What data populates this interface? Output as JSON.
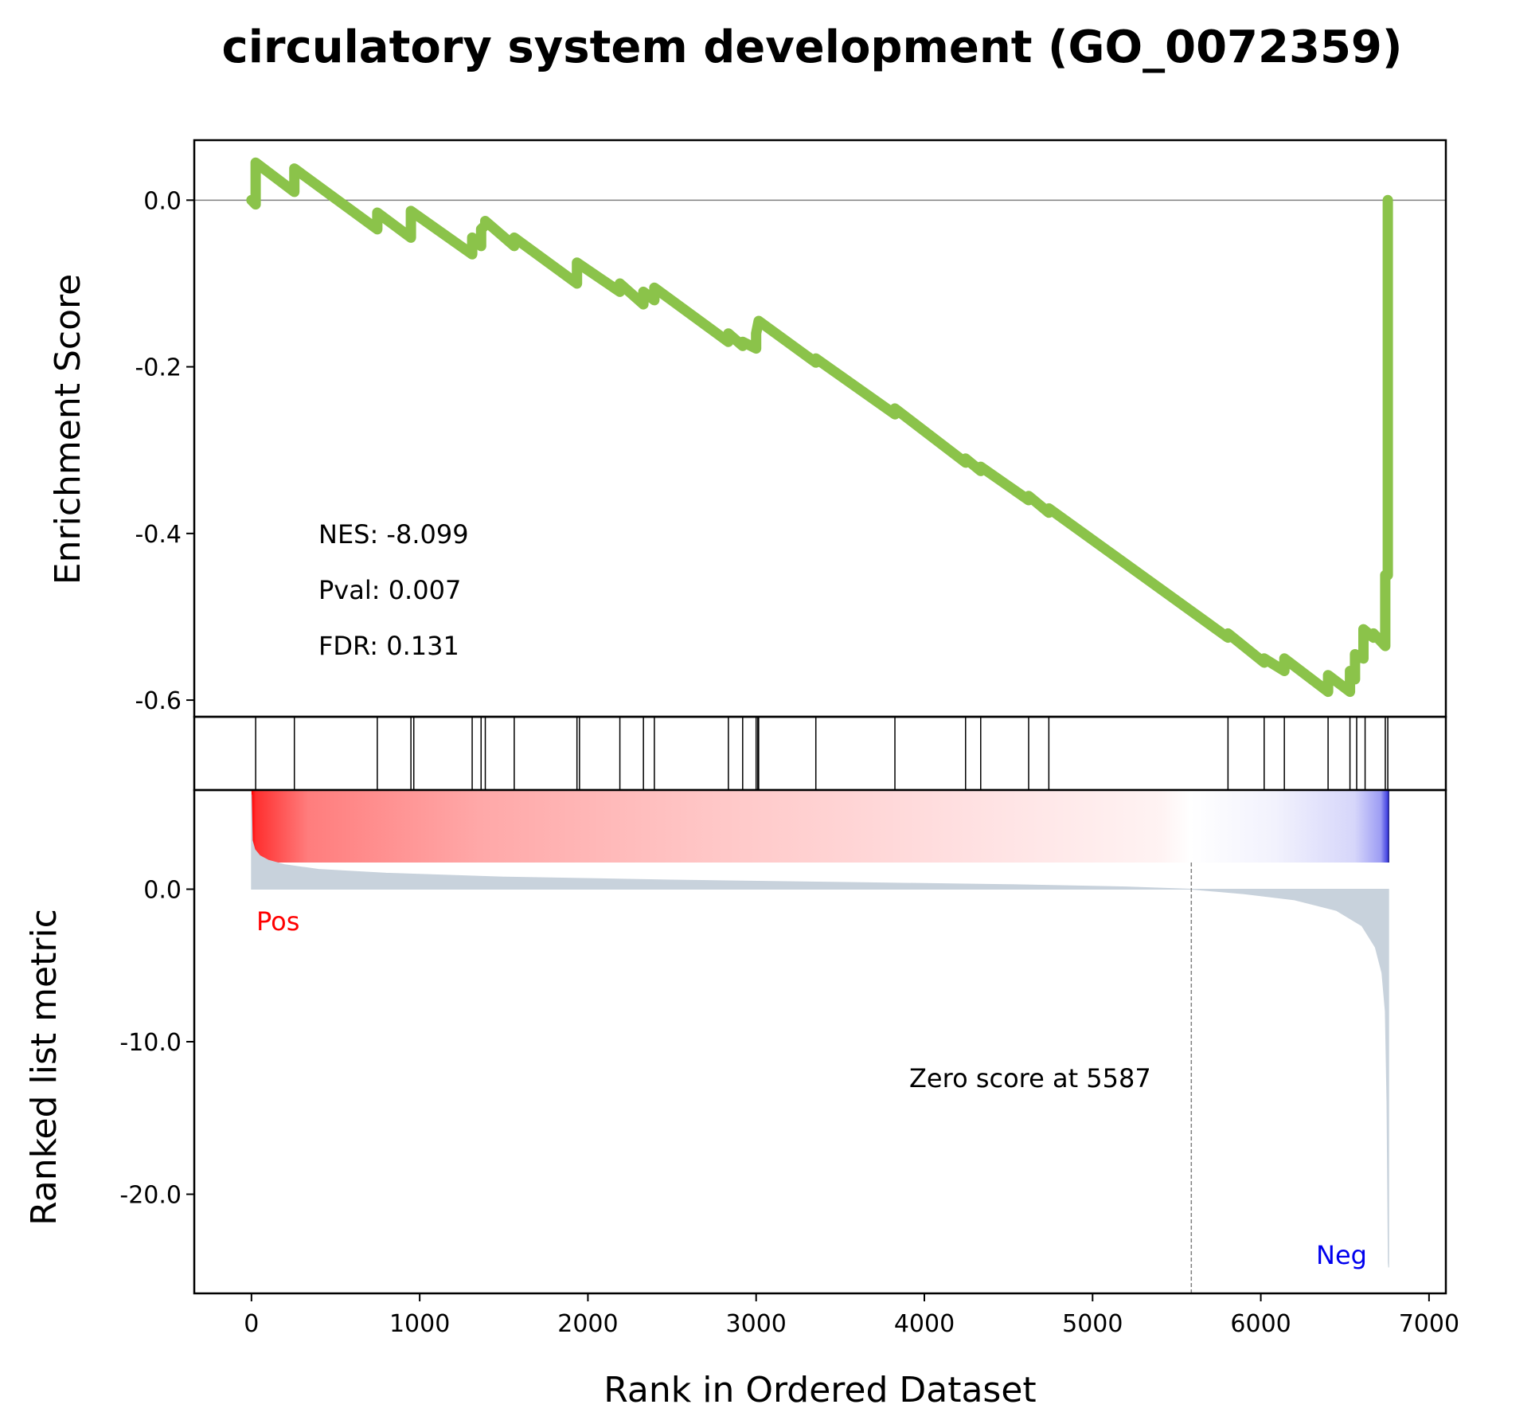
{
  "chart_data": {
    "type": "line",
    "title": "circulatory system development (GO_0072359)",
    "xlabel": "Rank in Ordered Dataset",
    "xlim": [
      -340,
      7100
    ],
    "x_ticks": [
      0,
      1000,
      2000,
      3000,
      4000,
      5000,
      6000,
      7000
    ],
    "x_tick_labels": [
      "0",
      "1000",
      "2000",
      "3000",
      "4000",
      "5000",
      "6000",
      "7000"
    ],
    "total_genes": 6760,
    "panels": {
      "enrichment": {
        "ylabel": "Enrichment Score",
        "ylim": [
          -0.62,
          0.072
        ],
        "y_ticks": [
          0.0,
          -0.2,
          -0.4,
          -0.6
        ],
        "y_tick_labels": [
          "0.0",
          "-0.2",
          "-0.4",
          "-0.6"
        ],
        "line_color": "#8bc34a",
        "stats": {
          "nes": "NES: -8.099",
          "pval": "Pval: 0.007",
          "fdr": "FDR: 0.131"
        },
        "running_es": {
          "x": [
            0,
            25,
            25,
            255,
            255,
            748,
            748,
            948,
            948,
            1312,
            1312,
            1365,
            1365,
            1390,
            1390,
            1562,
            1562,
            1935,
            1935,
            2190,
            2190,
            2330,
            2330,
            2395,
            2395,
            2835,
            2835,
            2920,
            2920,
            3000,
            3000,
            3015,
            3015,
            3355,
            3355,
            3825,
            3825,
            4245,
            4245,
            4335,
            4335,
            4620,
            4620,
            4740,
            4740,
            5805,
            5805,
            6020,
            6020,
            6140,
            6140,
            6400,
            6400,
            6530,
            6530,
            6560,
            6560,
            6610,
            6610,
            6670,
            6670,
            6740,
            6740,
            6755,
            6755
          ],
          "y": [
            0.0,
            -0.005,
            0.045,
            0.01,
            0.038,
            -0.035,
            -0.015,
            -0.045,
            -0.013,
            -0.065,
            -0.045,
            -0.055,
            -0.035,
            -0.03,
            -0.025,
            -0.055,
            -0.045,
            -0.1,
            -0.075,
            -0.11,
            -0.1,
            -0.125,
            -0.11,
            -0.12,
            -0.105,
            -0.17,
            -0.16,
            -0.175,
            -0.17,
            -0.178,
            -0.16,
            -0.145,
            -0.145,
            -0.195,
            -0.19,
            -0.257,
            -0.25,
            -0.315,
            -0.31,
            -0.325,
            -0.32,
            -0.36,
            -0.355,
            -0.375,
            -0.37,
            -0.525,
            -0.52,
            -0.555,
            -0.55,
            -0.565,
            -0.55,
            -0.59,
            -0.57,
            -0.59,
            -0.565,
            -0.575,
            -0.545,
            -0.55,
            -0.515,
            -0.525,
            -0.52,
            -0.535,
            -0.45,
            -0.45,
            0.0
          ]
        }
      },
      "hits": {
        "positions": [
          25,
          255,
          748,
          948,
          965,
          1312,
          1365,
          1390,
          1562,
          1935,
          1950,
          2190,
          2330,
          2395,
          2835,
          2920,
          3000,
          3010,
          3015,
          3355,
          3825,
          4245,
          4335,
          4620,
          4740,
          5805,
          6020,
          6140,
          6400,
          6530,
          6570,
          6620,
          6740,
          6755
        ]
      },
      "heatmap": {
        "pos_color": "#ff0000",
        "neg_color": "#0000ff"
      },
      "ranked_metric": {
        "ylabel": "Ranked list metric",
        "ylim": [
          -26.5,
          6.5
        ],
        "y_ticks": [
          0.0,
          -10.0,
          -20.0
        ],
        "y_tick_labels": [
          "0.0",
          "-10.0",
          "-20.0"
        ],
        "fill_color": "#c8d2dc",
        "zero_cross": 5587,
        "zero_label": "Zero score at 5587",
        "pos_label": "Pos",
        "neg_label": "Neg",
        "x": [
          0,
          5,
          20,
          50,
          100,
          200,
          400,
          800,
          1500,
          2500,
          3500,
          4500,
          5200,
          5587,
          5900,
          6200,
          6450,
          6600,
          6680,
          6720,
          6740,
          6750,
          6758,
          6760
        ],
        "values": [
          6.2,
          3.2,
          2.6,
          2.2,
          1.9,
          1.6,
          1.3,
          1.05,
          0.8,
          0.6,
          0.45,
          0.3,
          0.15,
          0.0,
          -0.3,
          -0.7,
          -1.4,
          -2.4,
          -3.8,
          -5.5,
          -8.0,
          -14.0,
          -24.5,
          -24.8
        ]
      }
    }
  }
}
